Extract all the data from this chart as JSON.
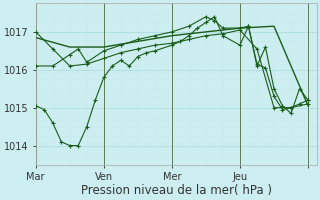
{
  "xlabel": "Pression niveau de la mer( hPa )",
  "bg_color": "#cceef0",
  "grid_color_major": "#b0dde0",
  "grid_color_minor": "#c8eaec",
  "line_color": "#1a5c1a",
  "ylim": [
    1013.5,
    1017.75
  ],
  "xlim": [
    0,
    33
  ],
  "x_day_lines": [
    0,
    8,
    16,
    24,
    32
  ],
  "x_tick_pos": [
    0,
    8,
    16,
    24,
    32
  ],
  "x_tick_labels": [
    "Mar",
    "Ven",
    "Mer",
    "Jeu",
    ""
  ],
  "series": [
    {
      "x": [
        0,
        4,
        8,
        12,
        16,
        20,
        24,
        28,
        32
      ],
      "y": [
        1016.85,
        1016.6,
        1016.6,
        1016.75,
        1016.9,
        1017.0,
        1017.1,
        1017.15,
        1015.05
      ],
      "marker": null,
      "lw": 1.0
    },
    {
      "x": [
        0,
        2,
        4,
        6,
        8,
        10,
        12,
        14,
        16,
        18,
        20,
        22,
        24,
        26,
        28,
        30,
        32
      ],
      "y": [
        1017.0,
        1016.55,
        1016.1,
        1016.15,
        1016.3,
        1016.45,
        1016.55,
        1016.65,
        1016.7,
        1016.8,
        1016.9,
        1016.95,
        1017.05,
        1016.55,
        1015.0,
        1015.0,
        1015.1
      ],
      "marker": "+",
      "lw": 0.8
    },
    {
      "x": [
        0,
        1,
        2,
        3,
        4,
        5,
        6,
        7,
        8,
        9,
        10,
        11,
        12,
        13,
        14,
        16,
        17,
        18,
        19,
        20,
        21,
        22,
        24,
        25,
        26,
        27,
        28,
        29,
        30,
        31,
        32
      ],
      "y": [
        1015.05,
        1014.95,
        1014.6,
        1014.1,
        1014.0,
        1014.0,
        1014.5,
        1015.2,
        1015.8,
        1016.1,
        1016.25,
        1016.1,
        1016.35,
        1016.45,
        1016.5,
        1016.65,
        1016.75,
        1016.9,
        1017.1,
        1017.25,
        1017.4,
        1016.9,
        1016.65,
        1017.15,
        1016.15,
        1016.05,
        1015.3,
        1014.95,
        1015.0,
        1015.1,
        1015.2
      ],
      "marker": "+",
      "lw": 0.8
    },
    {
      "x": [
        0,
        2,
        4,
        5,
        6,
        8,
        10,
        12,
        14,
        16,
        18,
        20,
        21,
        22,
        24,
        25,
        26,
        27,
        28,
        29,
        30,
        31,
        32
      ],
      "y": [
        1016.1,
        1016.1,
        1016.4,
        1016.55,
        1016.2,
        1016.5,
        1016.65,
        1016.8,
        1016.9,
        1017.0,
        1017.15,
        1017.4,
        1017.3,
        1017.1,
        1017.1,
        1017.15,
        1016.1,
        1016.6,
        1015.5,
        1015.05,
        1014.85,
        1015.5,
        1015.2
      ],
      "marker": "+",
      "lw": 0.8
    }
  ],
  "xlabel_fontsize": 8.5,
  "tick_fontsize": 7
}
